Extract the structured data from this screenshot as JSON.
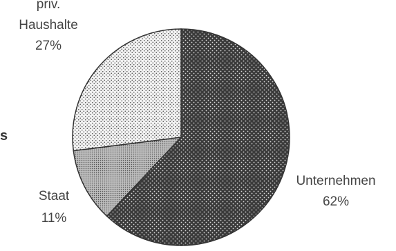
{
  "chart_data": {
    "type": "pie",
    "slices": [
      {
        "label": "Unternehmen",
        "value": 62,
        "value_text": "62%",
        "pattern": "dense-dots"
      },
      {
        "label": "Staat",
        "value": 11,
        "value_text": "11%",
        "pattern": "fine-dots"
      },
      {
        "label": "priv. Haushalte",
        "label_lines": [
          "priv.",
          "Haushalte"
        ],
        "value": 27,
        "value_text": "27%",
        "pattern": "light-dots"
      }
    ],
    "edge_text": "s",
    "colors": {
      "ink": "#333333",
      "label": "#444444",
      "background": "#ffffff"
    }
  }
}
